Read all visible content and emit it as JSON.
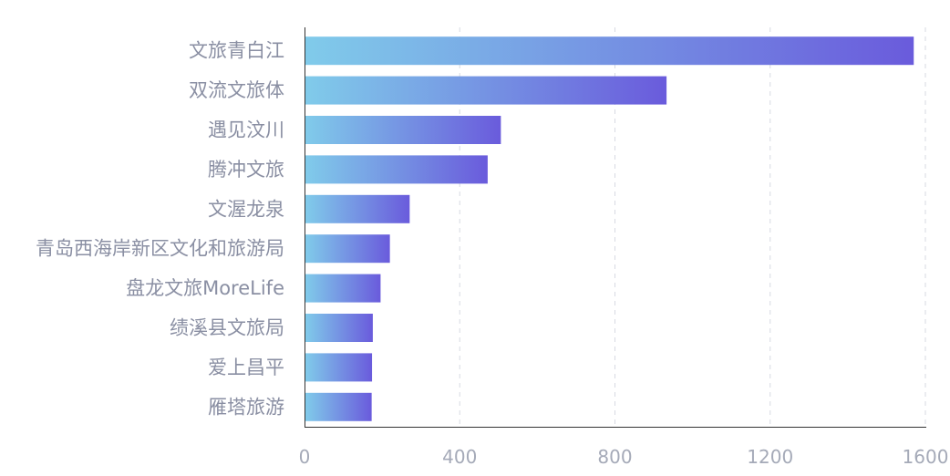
{
  "chart_data": {
    "type": "bar",
    "orientation": "horizontal",
    "categories": [
      "文旅青白江",
      "双流文旅体",
      "遇见汶川",
      "腾冲文旅",
      "文渥龙泉",
      "青岛西海岸新区文化和旅游局",
      "盘龙文旅MoreLife",
      "绩溪县文旅局",
      "爱上昌平",
      "雁塔旅游"
    ],
    "values": [
      1570,
      933,
      506,
      472,
      271,
      220,
      196,
      176,
      174,
      173
    ],
    "xlim": [
      0,
      1600
    ],
    "xticks": [
      "0",
      "400",
      "800",
      "1200",
      "1600"
    ],
    "grid": "vertical-dashed",
    "title": "",
    "xlabel": "",
    "ylabel": "",
    "colors": {
      "bar_start": "#80cbea",
      "bar_end": "#6a5bdc",
      "axis": "#333333",
      "grid": "#d7dae2",
      "label": "#8a8fa3",
      "tick": "#a5aab8"
    }
  }
}
